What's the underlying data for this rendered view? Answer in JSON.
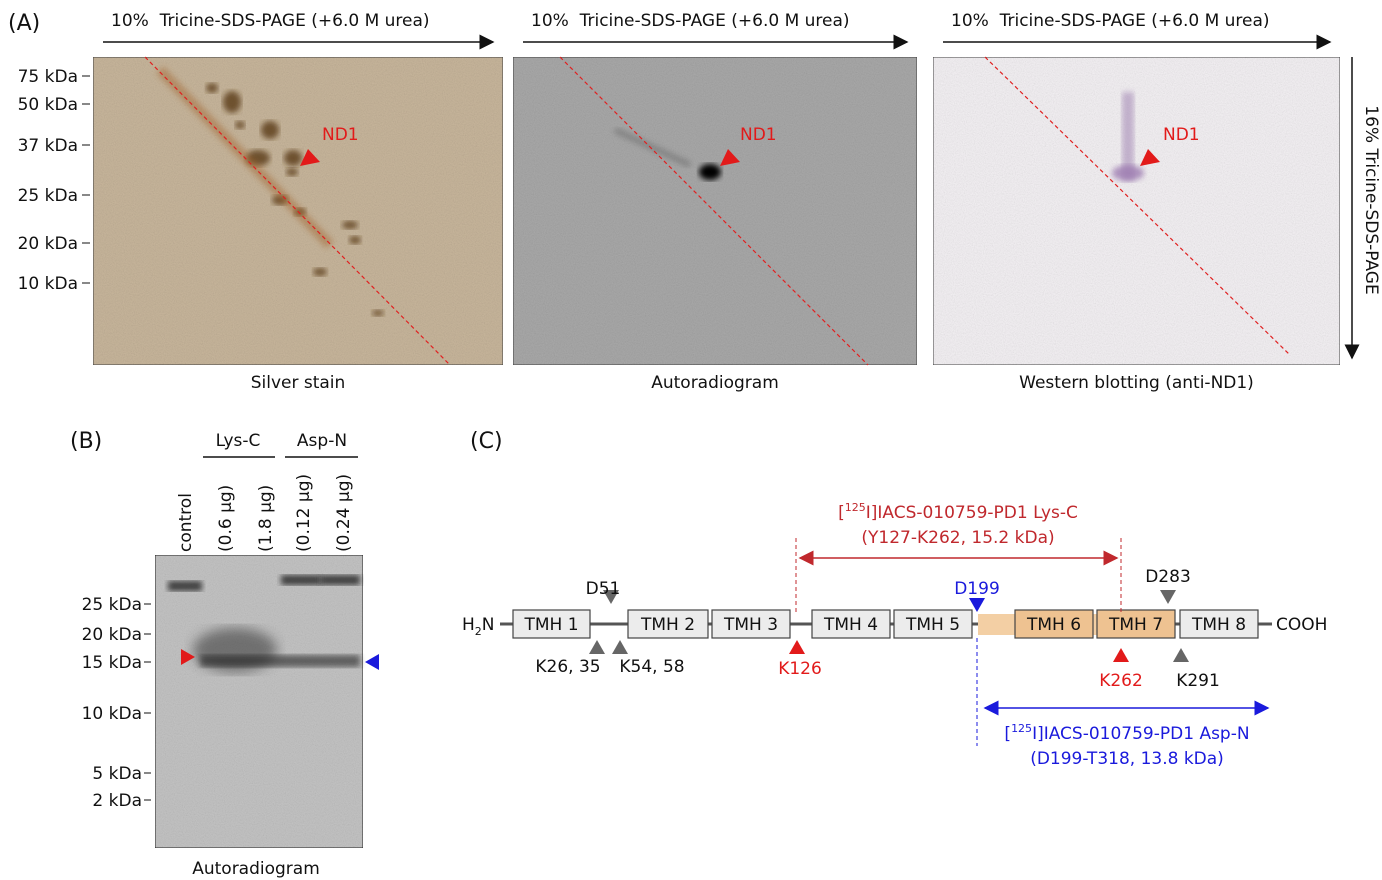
{
  "panel_a": {
    "label": "(A)",
    "gels": [
      {
        "direction": "10%  Tricine-SDS-PAGE (+6.0 M urea)",
        "caption": "Silver stain",
        "marker": "ND1"
      },
      {
        "direction": "10%  Tricine-SDS-PAGE (+6.0 M urea)",
        "caption": "Autoradiogram",
        "marker": "ND1"
      },
      {
        "direction": "10%  Tricine-SDS-PAGE (+6.0 M urea)",
        "caption": "Western blotting (anti-ND1)",
        "marker": "ND1"
      }
    ],
    "markers": [
      "75 kDa",
      "50 kDa",
      "37 kDa",
      "25 kDa",
      "20 kDa",
      "10 kDa"
    ],
    "second_dimension": "16% Tricine-SDS-PAGE"
  },
  "panel_b": {
    "label": "(B)",
    "groups": [
      "Lys-C",
      "Asp-N"
    ],
    "lanes": [
      "control",
      "(0.6 µg)",
      "(1.8 µg)",
      "(0.12 µg)",
      "(0.24 µg)"
    ],
    "markers": [
      "25 kDa",
      "20 kDa",
      "15 kDa",
      "10 kDa",
      "5 kDa",
      "2 kDa"
    ],
    "caption": "Autoradiogram"
  },
  "panel_c": {
    "label": "(C)",
    "n_term": {
      "h": "H",
      "sub": "2",
      "n": "N"
    },
    "c_term": "COOH",
    "helices": [
      "TMH 1",
      "TMH 2",
      "TMH 3",
      "TMH 4",
      "TMH 5",
      "TMH 6",
      "TMH 7",
      "TMH 8"
    ],
    "sites": {
      "d51": "D51",
      "k26": "K26, 35",
      "k54": "K54, 58",
      "k126": "K126",
      "d199": "D199",
      "k262": "K262",
      "d283": "D283",
      "k291": "K291"
    },
    "lys_c": {
      "open": "[",
      "sup": "125",
      "name": "I]IACS-010759-PD1 Lys-C",
      "range": "(Y127-K262, 15.2 kDa)"
    },
    "asp_n": {
      "open": "[",
      "sup": "125",
      "name": "I]IACS-010759-PD1 Asp-N",
      "range": "(D199-T318, 13.8 kDa)"
    }
  }
}
